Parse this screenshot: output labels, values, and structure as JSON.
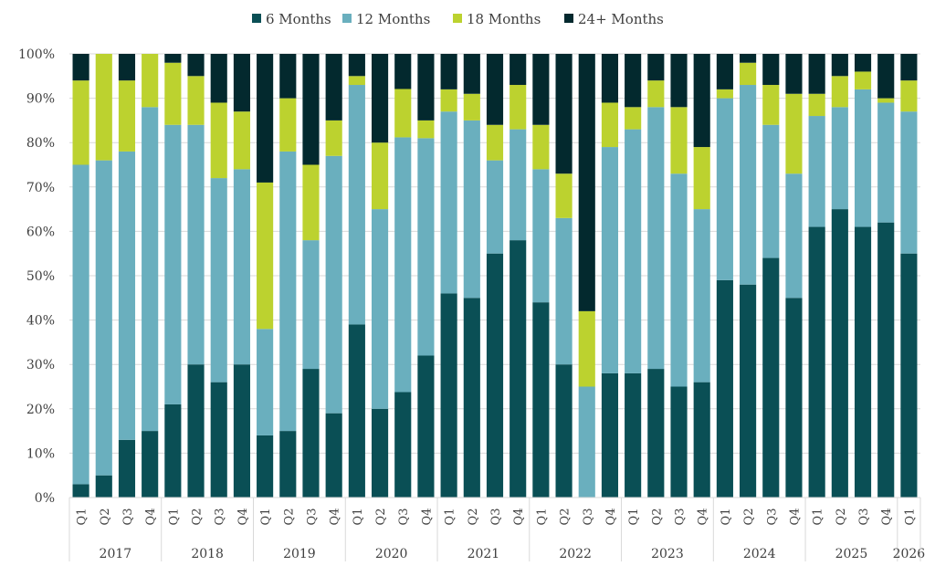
{
  "chart_data": {
    "type": "bar",
    "stacked": "percent",
    "title": "",
    "xlabel": "",
    "ylabel": "",
    "ylim": [
      0,
      100
    ],
    "y_ticks": [
      "0%",
      "10%",
      "20%",
      "30%",
      "40%",
      "50%",
      "60%",
      "70%",
      "80%",
      "90%",
      "100%"
    ],
    "legend_position": "top-center",
    "gridlines": true,
    "groups": [
      {
        "label": "2017",
        "count": 4
      },
      {
        "label": "2018",
        "count": 4
      },
      {
        "label": "2019",
        "count": 4
      },
      {
        "label": "2020",
        "count": 4
      },
      {
        "label": "2021",
        "count": 4
      },
      {
        "label": "2022",
        "count": 4
      },
      {
        "label": "2023",
        "count": 4
      },
      {
        "label": "2024",
        "count": 4
      },
      {
        "label": "2025",
        "count": 4
      },
      {
        "label": "2026",
        "count": 1
      }
    ],
    "categories": [
      "Q1",
      "Q2",
      "Q3",
      "Q4",
      "Q1",
      "Q2",
      "Q3",
      "Q4",
      "Q1",
      "Q2",
      "Q3",
      "Q4",
      "Q1",
      "Q2",
      "Q3",
      "Q4",
      "Q1",
      "Q2",
      "Q3",
      "Q4",
      "Q1",
      "Q2",
      "Q3",
      "Q4",
      "Q1",
      "Q2",
      "Q3",
      "Q4",
      "Q1",
      "Q2",
      "Q3",
      "Q4",
      "Q1",
      "Q2",
      "Q3",
      "Q4",
      "Q1"
    ],
    "series": [
      {
        "name": "6 Months",
        "color": "#0a4f55",
        "values": [
          3,
          5,
          13,
          15,
          21,
          30,
          26,
          30,
          14,
          15,
          29,
          19,
          39,
          20,
          24,
          32,
          46,
          45,
          55,
          58,
          44,
          30,
          0,
          28,
          28,
          29,
          25,
          26,
          49,
          48,
          54,
          45,
          61,
          65,
          61,
          62,
          55
        ]
      },
      {
        "name": "12 Months",
        "color": "#6aafbe",
        "values": [
          72,
          71,
          65,
          73,
          63,
          54,
          46,
          44,
          24,
          63,
          29,
          58,
          54,
          45,
          58,
          49,
          41,
          40,
          21,
          25,
          30,
          33,
          25,
          51,
          55,
          59,
          48,
          39,
          41,
          45,
          30,
          28,
          25,
          23,
          31,
          27,
          32
        ]
      },
      {
        "name": "18 Months",
        "color": "#bcd22f",
        "values": [
          19,
          24,
          16,
          12,
          14,
          11,
          17,
          13,
          33,
          12,
          17,
          8,
          2,
          15,
          11,
          4,
          5,
          6,
          8,
          10,
          10,
          10,
          17,
          10,
          5,
          6,
          15,
          14,
          2,
          5,
          9,
          18,
          5,
          7,
          4,
          1,
          7
        ]
      },
      {
        "name": "24+ Months",
        "color": "#03292e",
        "values": [
          6,
          0,
          6,
          0,
          2,
          5,
          11,
          13,
          29,
          10,
          25,
          15,
          5,
          20,
          8,
          15,
          8,
          9,
          16,
          7,
          16,
          27,
          58,
          11,
          12,
          6,
          12,
          21,
          8,
          2,
          7,
          9,
          9,
          5,
          4,
          10,
          6
        ]
      }
    ]
  }
}
